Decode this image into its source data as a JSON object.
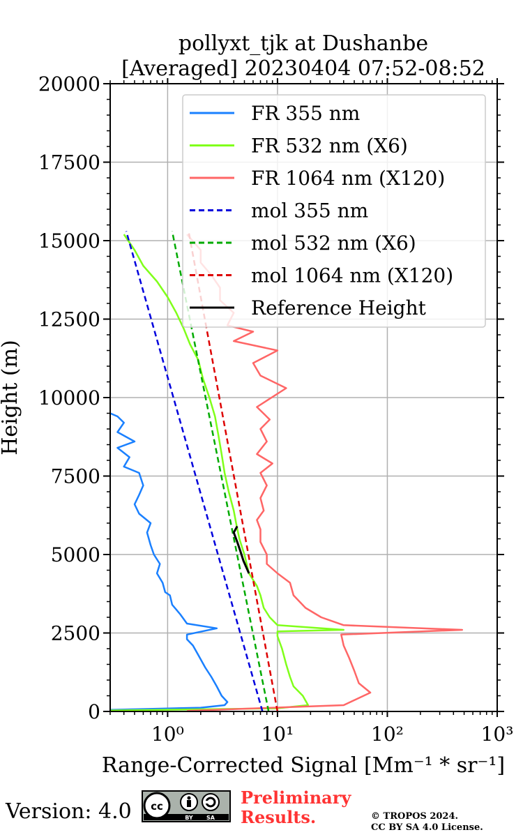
{
  "chart_data": {
    "type": "line",
    "title": [
      "pollyxt_tjk at Dushanbe",
      "[Averaged] 20230404 07:52-08:52"
    ],
    "xlabel": "Range-Corrected Signal [Mm⁻¹ * sr⁻¹]",
    "ylabel": "Height (m)",
    "xscale": "log",
    "xlim": [
      0.3,
      1000
    ],
    "ylim": [
      0,
      20000
    ],
    "xticks": [
      1,
      10,
      100,
      1000
    ],
    "xtick_labels": [
      "10⁰",
      "10¹",
      "10²",
      "10³"
    ],
    "yticks": [
      0,
      2500,
      5000,
      7500,
      10000,
      12500,
      15000,
      17500,
      20000
    ],
    "ytick_labels": [
      "0",
      "2500",
      "5000",
      "7500",
      "10000",
      "12500",
      "15000",
      "17500",
      "20000"
    ],
    "grid": true,
    "legend_position": "top-right",
    "series": [
      {
        "name": "FR 355 nm",
        "color": "#1a80ff",
        "dash": false,
        "points": [
          [
            0.3,
            50
          ],
          [
            2.0,
            120
          ],
          [
            3.3,
            200
          ],
          [
            3.5,
            300
          ],
          [
            3.1,
            500
          ],
          [
            2.8,
            800
          ],
          [
            2.5,
            1100
          ],
          [
            2.2,
            1400
          ],
          [
            1.9,
            1800
          ],
          [
            1.7,
            2100
          ],
          [
            1.5,
            2300
          ],
          [
            1.5,
            2450
          ],
          [
            2.8,
            2650
          ],
          [
            1.5,
            2800
          ],
          [
            1.3,
            3100
          ],
          [
            1.1,
            3400
          ],
          [
            1.05,
            3700
          ],
          [
            0.95,
            3800
          ],
          [
            0.9,
            4100
          ],
          [
            0.8,
            4400
          ],
          [
            0.85,
            4700
          ],
          [
            0.75,
            5000
          ],
          [
            0.7,
            5300
          ],
          [
            0.65,
            5700
          ],
          [
            0.7,
            6000
          ],
          [
            0.55,
            6300
          ],
          [
            0.5,
            6600
          ],
          [
            0.55,
            6900
          ],
          [
            0.6,
            7200
          ],
          [
            0.55,
            7600
          ],
          [
            0.4,
            7800
          ],
          [
            0.45,
            8100
          ],
          [
            0.35,
            8400
          ],
          [
            0.5,
            8600
          ],
          [
            0.35,
            8900
          ],
          [
            0.4,
            9200
          ],
          [
            0.35,
            9400
          ],
          [
            0.3,
            9500
          ]
        ]
      },
      {
        "name": "FR 532 nm (X6)",
        "color": "#80ff1a",
        "dash": false,
        "points": [
          [
            0.3,
            30
          ],
          [
            10,
            100
          ],
          [
            19,
            200
          ],
          [
            17,
            500
          ],
          [
            14,
            800
          ],
          [
            13,
            1100
          ],
          [
            12,
            1500
          ],
          [
            11,
            2000
          ],
          [
            10,
            2400
          ],
          [
            10,
            2550
          ],
          [
            40,
            2600
          ],
          [
            10,
            2750
          ],
          [
            8.5,
            3000
          ],
          [
            7.5,
            3300
          ],
          [
            7,
            3700
          ],
          [
            6.5,
            4000
          ],
          [
            5.5,
            4400
          ],
          [
            5,
            5000
          ],
          [
            4.5,
            5500
          ],
          [
            4.2,
            6000
          ],
          [
            4.0,
            6400
          ],
          [
            3.6,
            7000
          ],
          [
            3.3,
            7600
          ],
          [
            3.1,
            8200
          ],
          [
            2.9,
            8800
          ],
          [
            2.7,
            9400
          ],
          [
            2.4,
            10000
          ],
          [
            2.1,
            10600
          ],
          [
            1.9,
            11200
          ],
          [
            1.6,
            11700
          ],
          [
            1.4,
            12200
          ],
          [
            1.2,
            12700
          ],
          [
            1.0,
            13200
          ],
          [
            0.8,
            13700
          ],
          [
            0.6,
            14200
          ],
          [
            0.5,
            14700
          ],
          [
            0.4,
            15200
          ]
        ]
      },
      {
        "name": "FR 1064 nm (X120)",
        "color": "#ff6666",
        "dash": false,
        "points": [
          [
            1.5,
            20
          ],
          [
            40,
            200
          ],
          [
            70,
            600
          ],
          [
            55,
            900
          ],
          [
            50,
            1300
          ],
          [
            45,
            1700
          ],
          [
            40,
            2100
          ],
          [
            38,
            2450
          ],
          [
            480,
            2600
          ],
          [
            40,
            2750
          ],
          [
            25,
            3000
          ],
          [
            18,
            3300
          ],
          [
            14,
            3700
          ],
          [
            13,
            4100
          ],
          [
            10,
            4400
          ],
          [
            8,
            4700
          ],
          [
            8,
            5000
          ],
          [
            7,
            5400
          ],
          [
            7,
            5800
          ],
          [
            6.5,
            6100
          ],
          [
            7.5,
            6400
          ],
          [
            7,
            6800
          ],
          [
            8,
            7200
          ],
          [
            7,
            7600
          ],
          [
            9,
            7900
          ],
          [
            6.5,
            8200
          ],
          [
            8,
            8600
          ],
          [
            7,
            9000
          ],
          [
            8.5,
            9300
          ],
          [
            6.5,
            9700
          ],
          [
            12,
            10300
          ],
          [
            7,
            10700
          ],
          [
            6,
            11100
          ],
          [
            10,
            11500
          ],
          [
            4,
            11800
          ],
          [
            6,
            12100
          ],
          [
            3.5,
            12300
          ],
          [
            4,
            12700
          ],
          [
            3,
            13100
          ],
          [
            3,
            13500
          ],
          [
            2.5,
            13900
          ],
          [
            2,
            14300
          ],
          [
            2,
            14700
          ],
          [
            1.5,
            15200
          ]
        ]
      },
      {
        "name": "mol 355 nm",
        "color": "#0000dd",
        "dash": true,
        "points": [
          [
            7.3,
            0
          ],
          [
            0.42,
            15300
          ]
        ]
      },
      {
        "name": "mol 532 nm (X6)",
        "color": "#00aa00",
        "dash": true,
        "points": [
          [
            8.3,
            0
          ],
          [
            1.1,
            15300
          ]
        ]
      },
      {
        "name": "mol 1064 nm (X120)",
        "color": "#dd0000",
        "dash": true,
        "points": [
          [
            10,
            0
          ],
          [
            1.55,
            15300
          ]
        ]
      },
      {
        "name": "Reference Height",
        "color": "#000000",
        "dash": false,
        "points": [
          [
            5.5,
            4400
          ],
          [
            4.9,
            4800
          ],
          [
            4.6,
            5100
          ],
          [
            4.3,
            5400
          ],
          [
            4.0,
            5700
          ],
          [
            4.3,
            5900
          ]
        ]
      }
    ]
  },
  "footer": {
    "version": "Version: 4.0",
    "preliminary_line1": "Preliminary",
    "preliminary_line2": "Results.",
    "copyright_line1": "© TROPOS 2024.",
    "copyright_line2": "CC BY SA 4.0 License.",
    "badge_text_cc": "cc",
    "badge_text_by": "BY",
    "badge_text_sa": "SA",
    "accent_color": "#ff3333"
  }
}
